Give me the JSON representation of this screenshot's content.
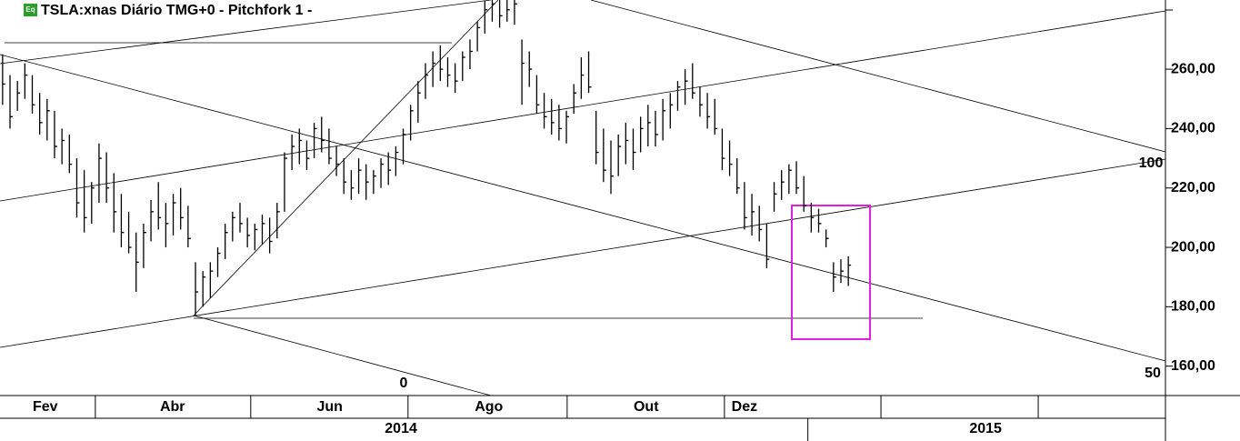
{
  "chart_data": {
    "type": "ohlc",
    "title": "TSLA:xnas Diário TMG+0  -  Pitchfork 1  -",
    "badge": "Eq",
    "color": "#000000",
    "x": [
      0,
      2,
      4,
      6,
      8,
      10,
      12,
      14,
      16,
      18,
      20,
      22,
      24,
      26,
      28,
      30,
      32,
      34,
      36,
      38,
      40,
      42,
      44,
      46,
      48,
      50,
      52,
      54,
      56,
      58,
      60,
      62,
      64,
      66,
      68,
      70,
      72,
      74,
      76,
      78,
      80,
      82,
      84,
      86,
      88,
      90,
      92,
      94,
      96,
      98,
      100,
      102,
      104,
      106,
      108,
      110,
      112,
      114,
      116,
      118,
      120,
      122,
      124,
      126,
      128,
      130,
      132,
      134,
      136,
      138,
      140,
      142,
      144,
      146,
      148,
      150,
      152,
      154,
      156,
      158,
      160,
      162,
      164,
      166,
      168,
      170,
      172,
      174,
      176,
      178,
      180,
      182,
      184,
      186,
      188,
      190,
      192,
      194,
      196,
      198,
      200,
      202,
      204,
      206,
      208,
      210,
      212,
      214,
      216,
      218,
      220,
      222,
      224,
      226,
      228
    ],
    "high": [
      265,
      258,
      256,
      262,
      258,
      252,
      250,
      246,
      240,
      238,
      230,
      226,
      222,
      235,
      232,
      225,
      218,
      212,
      205,
      208,
      216,
      222,
      215,
      218,
      220,
      214,
      195,
      192,
      195,
      200,
      208,
      212,
      215,
      210,
      208,
      211,
      210,
      215,
      232,
      238,
      240,
      236,
      242,
      244,
      240,
      234,
      230,
      226,
      230,
      228,
      226,
      230,
      232,
      234,
      240,
      248,
      256,
      262,
      266,
      268,
      264,
      262,
      266,
      270,
      276,
      283,
      285,
      284,
      285,
      284,
      270,
      266,
      258,
      252,
      250,
      248,
      246,
      255,
      264,
      266,
      246,
      240,
      236,
      238,
      242,
      240,
      244,
      248,
      246,
      250,
      252,
      256,
      260,
      262,
      254,
      252,
      250,
      240,
      236,
      230,
      222,
      218,
      214,
      208,
      222,
      226,
      228,
      229,
      224,
      215,
      213,
      206,
      195,
      196,
      197
    ],
    "low": [
      248,
      240,
      246,
      250,
      245,
      238,
      236,
      230,
      228,
      225,
      210,
      205,
      208,
      215,
      215,
      205,
      200,
      198,
      185,
      193,
      202,
      206,
      200,
      204,
      206,
      200,
      177,
      180,
      183,
      190,
      196,
      202,
      205,
      200,
      199,
      201,
      198,
      203,
      212,
      226,
      228,
      226,
      230,
      232,
      228,
      224,
      218,
      216,
      218,
      216,
      218,
      220,
      221,
      224,
      228,
      236,
      242,
      250,
      254,
      256,
      254,
      252,
      256,
      260,
      266,
      272,
      276,
      274,
      276,
      275,
      248,
      254,
      245,
      240,
      238,
      236,
      235,
      245,
      250,
      252,
      228,
      222,
      218,
      224,
      228,
      226,
      232,
      234,
      234,
      236,
      240,
      246,
      248,
      250,
      244,
      240,
      238,
      226,
      224,
      218,
      206,
      204,
      202,
      193,
      212,
      216,
      218,
      218,
      212,
      205,
      205,
      200,
      185,
      188,
      187
    ],
    "close": [
      255,
      244,
      252,
      258,
      248,
      242,
      246,
      234,
      236,
      228,
      215,
      210,
      220,
      230,
      220,
      212,
      205,
      200,
      195,
      205,
      212,
      210,
      208,
      215,
      210,
      203,
      185,
      190,
      192,
      198,
      205,
      210,
      208,
      204,
      206,
      208,
      202,
      212,
      230,
      234,
      236,
      230,
      240,
      236,
      230,
      228,
      222,
      220,
      226,
      222,
      224,
      228,
      226,
      232,
      238,
      246,
      252,
      258,
      262,
      260,
      258,
      256,
      264,
      266,
      274,
      280,
      282,
      278,
      280,
      282,
      262,
      260,
      248,
      244,
      242,
      240,
      244,
      252,
      258,
      254,
      232,
      226,
      224,
      234,
      236,
      232,
      240,
      242,
      238,
      246,
      248,
      254,
      256,
      252,
      248,
      244,
      240,
      230,
      228,
      220,
      210,
      212,
      206,
      196,
      218,
      222,
      226,
      220,
      214,
      210,
      208,
      203,
      190,
      192,
      194
    ],
    "xlim": [
      -0.7,
      313.5
    ],
    "ylim": [
      150.1,
      283.3
    ],
    "yticks": [
      {
        "value": 160,
        "label": "160,00"
      },
      {
        "value": 180,
        "label": "180,00"
      },
      {
        "value": 200,
        "label": "200,00"
      },
      {
        "value": 220,
        "label": "220,00"
      },
      {
        "value": 240,
        "label": "240,00"
      },
      {
        "value": 260,
        "label": "260,00"
      }
    ],
    "xticks": [
      {
        "value": 11.5,
        "label": "Fev"
      },
      {
        "value": 45.8,
        "label": "Abr"
      },
      {
        "value": 88.2,
        "label": "Jun"
      },
      {
        "value": 131.1,
        "label": "Ago"
      },
      {
        "value": 173.5,
        "label": "Out"
      },
      {
        "value": 200,
        "label": "Dez"
      }
    ],
    "x_separators": [
      25,
      66.9,
      109.3,
      152.2,
      194.6,
      236.8,
      279.2
    ],
    "years": [
      {
        "value": 107.4,
        "label": "2014"
      },
      {
        "value": 265,
        "label": "2015"
      }
    ],
    "year_separators": [
      217.1
    ],
    "annotations": [
      "100",
      "50",
      "0"
    ]
  }
}
